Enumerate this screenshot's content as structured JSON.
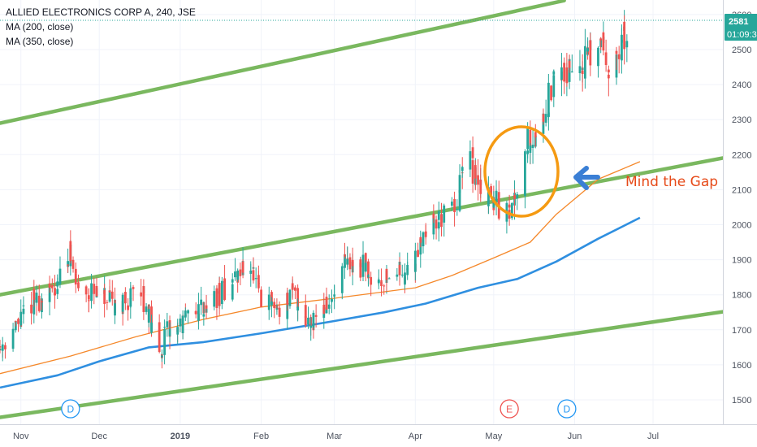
{
  "header": {
    "title": "ALLIED ELECTRONICS CORP A, 240, JSE",
    "ma_labels": [
      "MA (200, close)",
      "MA (350, close)"
    ]
  },
  "price_badge": {
    "price": "2581",
    "countdown": "01:09:3"
  },
  "annotation": {
    "text": "Mind the Gap"
  },
  "event_markers": [
    {
      "label": "D",
      "date": "2018-11-20"
    },
    {
      "label": "E",
      "date": "2019-05-07"
    },
    {
      "label": "D",
      "date": "2019-05-29"
    }
  ],
  "colors": {
    "up": "#26a69a",
    "down": "#ef5350",
    "channel": "#7ab85f",
    "ma200": "#2f8fe0",
    "ma350": "#f5882a",
    "annotation": "#e64a19",
    "arrow": "#3a7fd5",
    "circle": "#f59a12",
    "badge_bg": "#26a69a"
  },
  "chart_data": {
    "type": "candlestick",
    "title": "ALLIED ELECTRONICS CORP A, 240, JSE",
    "x_ticks": [
      "Nov",
      "Dec",
      "2019",
      "Feb",
      "Mar",
      "Apr",
      "May",
      "Jun",
      "Jul"
    ],
    "x_tick_dates": [
      "2018-11-01",
      "2018-12-01",
      "2019-01-01",
      "2019-02-01",
      "2019-03-01",
      "2019-04-01",
      "2019-05-01",
      "2019-06-01",
      "2019-07-01"
    ],
    "y_ticks": [
      1500,
      1600,
      1700,
      1800,
      1900,
      2000,
      2100,
      2200,
      2300,
      2400,
      2500,
      2600
    ],
    "ylim": [
      1450,
      2640
    ],
    "last_price": 2581,
    "price_path": [
      [
        "2018-10-24",
        1650
      ],
      [
        "2018-11-01",
        1720
      ],
      [
        "2018-11-05",
        1780
      ],
      [
        "2018-11-12",
        1790
      ],
      [
        "2018-11-16",
        1840
      ],
      [
        "2018-11-20",
        1930
      ],
      [
        "2018-11-23",
        1820
      ],
      [
        "2018-11-30",
        1800
      ],
      [
        "2018-12-07",
        1770
      ],
      [
        "2018-12-14",
        1790
      ],
      [
        "2018-12-18",
        1810
      ],
      [
        "2018-12-21",
        1720
      ],
      [
        "2018-12-24",
        1620
      ],
      [
        "2018-12-27",
        1690
      ],
      [
        "2019-01-03",
        1720
      ],
      [
        "2019-01-10",
        1770
      ],
      [
        "2019-01-17",
        1800
      ],
      [
        "2019-01-24",
        1860
      ],
      [
        "2019-01-28",
        1900
      ],
      [
        "2019-02-01",
        1780
      ],
      [
        "2019-02-08",
        1760
      ],
      [
        "2019-02-14",
        1800
      ],
      [
        "2019-02-20",
        1720
      ],
      [
        "2019-02-24",
        1760
      ],
      [
        "2019-03-01",
        1780
      ],
      [
        "2019-03-05",
        1880
      ],
      [
        "2019-03-11",
        1890
      ],
      [
        "2019-03-18",
        1840
      ],
      [
        "2019-03-25",
        1870
      ],
      [
        "2019-03-31",
        1860
      ],
      [
        "2019-04-04",
        1980
      ],
      [
        "2019-04-11",
        2020
      ],
      [
        "2019-04-17",
        2040
      ],
      [
        "2019-04-21",
        2200
      ],
      [
        "2019-04-25",
        2120
      ],
      [
        "2019-04-29",
        2080
      ],
      [
        "2019-05-05",
        2050
      ],
      [
        "2019-05-08",
        2030
      ],
      [
        "2019-05-11",
        2150
      ],
      [
        "2019-05-14",
        2240
      ],
      [
        "2019-05-18",
        2260
      ],
      [
        "2019-05-22",
        2350
      ],
      [
        "2019-05-26",
        2430
      ],
      [
        "2019-05-31",
        2440
      ],
      [
        "2019-06-04",
        2470
      ],
      [
        "2019-06-08",
        2480
      ],
      [
        "2019-06-12",
        2540
      ],
      [
        "2019-06-16",
        2410
      ],
      [
        "2019-06-20",
        2530
      ],
      [
        "2019-06-24",
        2515
      ]
    ],
    "ma200": [
      [
        "2018-10-24",
        1535
      ],
      [
        "2018-11-15",
        1570
      ],
      [
        "2018-12-01",
        1610
      ],
      [
        "2018-12-20",
        1650
      ],
      [
        "2019-01-10",
        1665
      ],
      [
        "2019-02-01",
        1690
      ],
      [
        "2019-03-01",
        1725
      ],
      [
        "2019-03-20",
        1750
      ],
      [
        "2019-04-05",
        1775
      ],
      [
        "2019-04-25",
        1820
      ],
      [
        "2019-05-10",
        1845
      ],
      [
        "2019-05-25",
        1895
      ],
      [
        "2019-06-10",
        1960
      ],
      [
        "2019-06-26",
        2020
      ]
    ],
    "ma350": [
      [
        "2018-10-24",
        1575
      ],
      [
        "2018-11-20",
        1625
      ],
      [
        "2018-12-15",
        1680
      ],
      [
        "2019-01-10",
        1730
      ],
      [
        "2019-02-01",
        1765
      ],
      [
        "2019-03-01",
        1790
      ],
      [
        "2019-04-01",
        1820
      ],
      [
        "2019-04-15",
        1855
      ],
      [
        "2019-05-01",
        1905
      ],
      [
        "2019-05-15",
        1950
      ],
      [
        "2019-05-25",
        2030
      ],
      [
        "2019-06-10",
        2130
      ],
      [
        "2019-06-26",
        2180
      ]
    ],
    "channel_lines": [
      {
        "from": [
          "2018-10-24",
          2290
        ],
        "to": [
          "2019-05-28",
          2640
        ]
      },
      {
        "from": [
          "2018-10-24",
          1800
        ],
        "to": [
          "2019-07-31",
          2195
        ]
      },
      {
        "from": [
          "2018-10-24",
          1450
        ],
        "to": [
          "2019-07-31",
          1755
        ]
      }
    ]
  }
}
